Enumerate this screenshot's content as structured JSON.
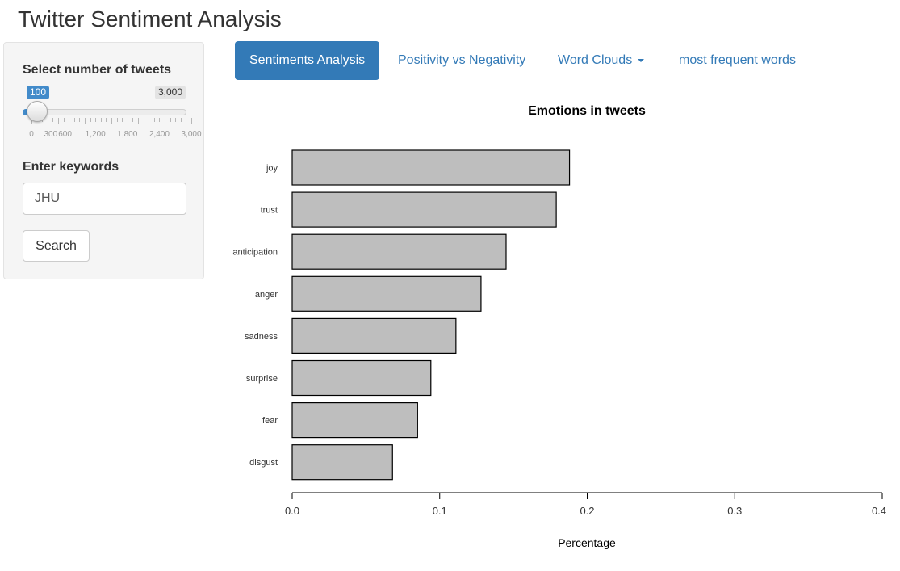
{
  "app": {
    "title": "Twitter Sentiment Analysis"
  },
  "sidebar": {
    "tweets_label": "Select number of tweets",
    "slider": {
      "value": 100,
      "value_label": "100",
      "min": 0,
      "max": 3000,
      "max_label": "3,000",
      "grid_labels": [
        {
          "value": 0,
          "label": "0"
        },
        {
          "value": 300,
          "label": "300"
        },
        {
          "value": 600,
          "label": "600"
        },
        {
          "value": 1200,
          "label": "1,200"
        },
        {
          "value": 1800,
          "label": "1,800"
        },
        {
          "value": 2400,
          "label": "2,400"
        },
        {
          "value": 3000,
          "label": "3,000"
        }
      ]
    },
    "keywords_label": "Enter keywords",
    "keywords_value": "JHU",
    "search_label": "Search"
  },
  "tabs": [
    {
      "label": "Sentiments Analysis",
      "active": true
    },
    {
      "label": "Positivity vs Negativity",
      "active": false
    },
    {
      "label": "Word Clouds",
      "active": false,
      "dropdown": true
    },
    {
      "label": "most frequent words",
      "active": false
    }
  ],
  "colors": {
    "accent": "#337ab7",
    "slider_blue": "#428bca",
    "bar_fill": "#bebebe",
    "bar_stroke": "#000000"
  },
  "chart_data": {
    "type": "bar",
    "orientation": "horizontal",
    "title": "Emotions in tweets",
    "xlabel": "Percentage",
    "ylabel": "",
    "categories": [
      "joy",
      "trust",
      "anticipation",
      "anger",
      "sadness",
      "surprise",
      "fear",
      "disgust"
    ],
    "values": [
      0.188,
      0.179,
      0.145,
      0.128,
      0.111,
      0.094,
      0.085,
      0.068
    ],
    "xlim": [
      0,
      0.4
    ],
    "xticks": [
      {
        "value": 0,
        "label": "0.0"
      },
      {
        "value": 0.1,
        "label": "0.1"
      },
      {
        "value": 0.2,
        "label": "0.2"
      },
      {
        "value": 0.3,
        "label": "0.3"
      },
      {
        "value": 0.4,
        "label": "0.4"
      }
    ],
    "grid": false,
    "legend": "none"
  }
}
